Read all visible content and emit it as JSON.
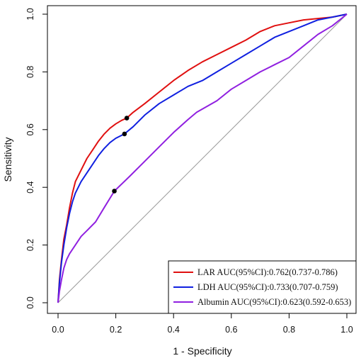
{
  "chart_data": {
    "type": "line",
    "title": "",
    "xlabel": "1 - Specificity",
    "ylabel": "Sensitivity",
    "xlim": [
      0,
      1
    ],
    "ylim": [
      0,
      1
    ],
    "xticks": [
      "0.0",
      "0.2",
      "0.4",
      "0.6",
      "0.8",
      "1.0"
    ],
    "yticks": [
      "0.0",
      "0.2",
      "0.4",
      "0.6",
      "0.8",
      "1.0"
    ],
    "grid": false,
    "legend_position": "bottom-right",
    "reference_line": {
      "x": [
        0,
        1
      ],
      "y": [
        0,
        1
      ],
      "color": "#999999"
    },
    "series": [
      {
        "name": "LAR  AUC(95%CI):0.762(0.737-0.786)",
        "color": "#e01010",
        "x": [
          0,
          0.005,
          0.012,
          0.02,
          0.03,
          0.04,
          0.05,
          0.06,
          0.08,
          0.1,
          0.12,
          0.14,
          0.16,
          0.18,
          0.2,
          0.22,
          0.238,
          0.26,
          0.3,
          0.35,
          0.4,
          0.45,
          0.5,
          0.55,
          0.6,
          0.65,
          0.7,
          0.75,
          0.8,
          0.85,
          0.9,
          0.95,
          1.0
        ],
        "y": [
          0,
          0.08,
          0.15,
          0.22,
          0.27,
          0.33,
          0.38,
          0.42,
          0.46,
          0.5,
          0.53,
          0.56,
          0.585,
          0.605,
          0.62,
          0.632,
          0.64,
          0.66,
          0.69,
          0.73,
          0.77,
          0.805,
          0.835,
          0.86,
          0.885,
          0.91,
          0.94,
          0.96,
          0.97,
          0.98,
          0.985,
          0.99,
          1.0
        ]
      },
      {
        "name": "LDH AUC(95%CI):0.733(0.707-0.759)",
        "color": "#1020e0",
        "x": [
          0,
          0.005,
          0.012,
          0.02,
          0.03,
          0.04,
          0.05,
          0.06,
          0.08,
          0.1,
          0.12,
          0.14,
          0.16,
          0.18,
          0.2,
          0.23,
          0.26,
          0.3,
          0.35,
          0.4,
          0.45,
          0.5,
          0.55,
          0.6,
          0.65,
          0.7,
          0.75,
          0.8,
          0.85,
          0.9,
          0.95,
          1.0
        ],
        "y": [
          0,
          0.07,
          0.14,
          0.2,
          0.26,
          0.31,
          0.35,
          0.38,
          0.42,
          0.45,
          0.48,
          0.51,
          0.535,
          0.555,
          0.57,
          0.585,
          0.61,
          0.65,
          0.69,
          0.72,
          0.75,
          0.77,
          0.8,
          0.83,
          0.86,
          0.89,
          0.92,
          0.94,
          0.96,
          0.98,
          0.99,
          1.0
        ]
      },
      {
        "name": "Albumin AUC(95%CI):0.623(0.592-0.653)",
        "color": "#9020e0",
        "x": [
          0,
          0.005,
          0.012,
          0.02,
          0.03,
          0.04,
          0.06,
          0.08,
          0.1,
          0.13,
          0.16,
          0.195,
          0.25,
          0.3,
          0.35,
          0.4,
          0.45,
          0.48,
          0.55,
          0.6,
          0.65,
          0.7,
          0.75,
          0.8,
          0.85,
          0.9,
          0.95,
          1.0
        ],
        "y": [
          0,
          0.04,
          0.08,
          0.12,
          0.15,
          0.17,
          0.2,
          0.23,
          0.25,
          0.28,
          0.33,
          0.387,
          0.44,
          0.49,
          0.54,
          0.59,
          0.635,
          0.66,
          0.7,
          0.74,
          0.77,
          0.8,
          0.825,
          0.85,
          0.89,
          0.93,
          0.96,
          1.0
        ]
      }
    ],
    "cutoff_points": [
      {
        "x": 0.238,
        "y": 0.64,
        "color": "#000000"
      },
      {
        "x": 0.23,
        "y": 0.585,
        "color": "#000000"
      },
      {
        "x": 0.195,
        "y": 0.387,
        "color": "#000000"
      }
    ]
  }
}
